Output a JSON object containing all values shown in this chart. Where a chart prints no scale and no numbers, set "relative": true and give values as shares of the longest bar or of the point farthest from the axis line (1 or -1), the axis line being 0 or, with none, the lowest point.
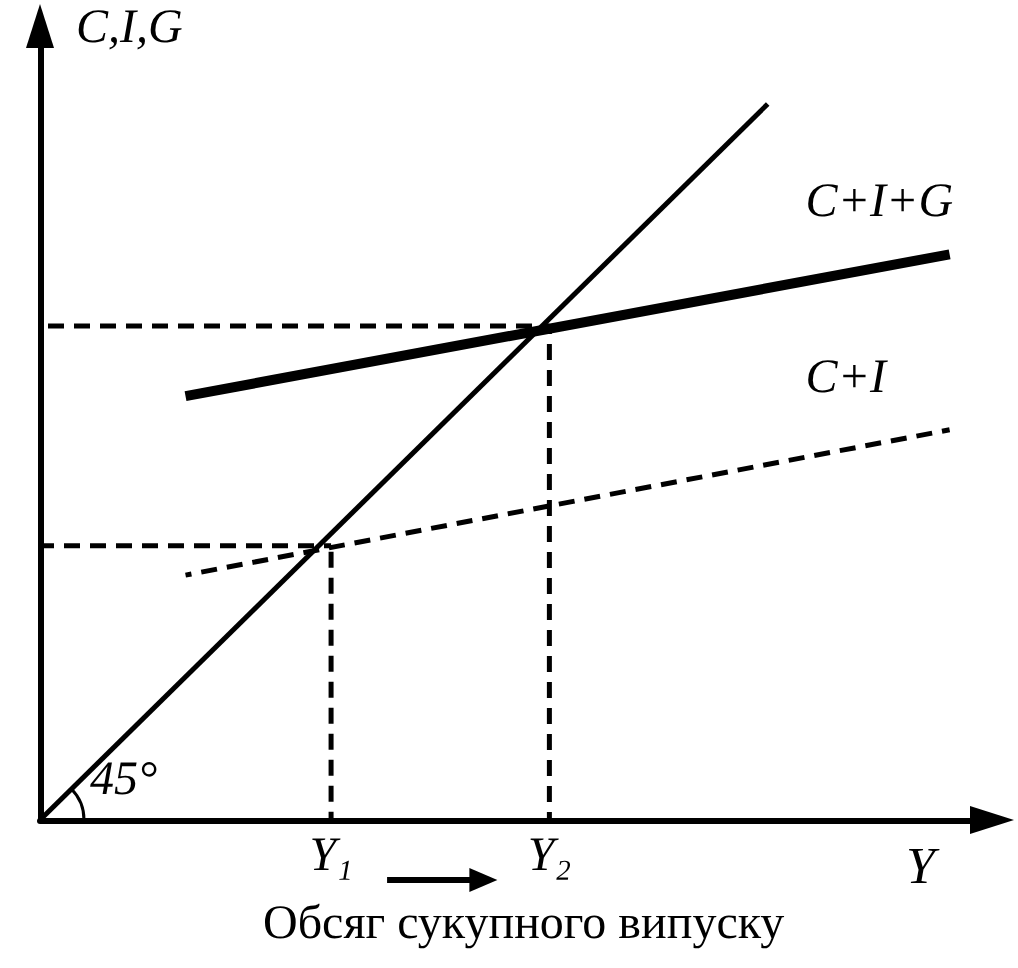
{
  "chart_data": {
    "type": "line",
    "relative": true,
    "xlabel": "Y",
    "ylabel": "C,I,G",
    "annotations": [
      "45°",
      "Обсяг сукупного випуску"
    ],
    "categories": [
      null,
      null,
      null,
      null,
      null,
      null,
      null,
      null,
      "Y₁",
      null,
      null,
      null,
      null,
      null,
      "Y₂",
      null,
      null,
      null,
      null,
      null,
      null,
      null,
      null,
      null,
      null,
      null,
      null
    ],
    "grid": false,
    "legend": false,
    "marker": "none",
    "series": [
      {
        "color": "#000000",
        "line_style": "solid",
        "values": [
          0,
          null,
          null,
          null,
          null,
          null,
          null,
          null,
          null,
          null,
          null,
          null,
          null,
          null,
          null,
          null,
          null,
          null,
          null,
          null,
          1,
          null,
          null,
          null,
          null,
          null,
          null
        ]
      },
      {
        "name": "C+I+G",
        "color": "#000000",
        "line_style": "solid",
        "values": [
          null,
          null,
          null,
          null,
          0.592,
          null,
          null,
          null,
          null,
          null,
          null,
          null,
          null,
          null,
          null,
          null,
          null,
          null,
          null,
          null,
          null,
          null,
          null,
          null,
          null,
          0.79,
          null
        ]
      },
      {
        "name": "C+I",
        "color": "#000000",
        "line_style": "dashed",
        "values": [
          null,
          null,
          null,
          null,
          0.342,
          null,
          null,
          null,
          null,
          null,
          null,
          null,
          null,
          null,
          null,
          null,
          null,
          null,
          null,
          null,
          null,
          null,
          null,
          null,
          null,
          0.545,
          null
        ]
      },
      {
        "color": "#000000",
        "line_style": "dashed",
        "values": [
          0.383,
          null,
          null,
          null,
          null,
          null,
          null,
          null,
          0.383,
          null,
          null,
          null,
          null,
          null,
          null,
          null,
          null,
          null,
          null,
          null,
          null,
          null,
          null,
          null,
          null,
          null,
          null
        ]
      },
      {
        "color": "#000000",
        "line_style": "dashed",
        "values": [
          0.69,
          null,
          null,
          null,
          null,
          null,
          null,
          null,
          null,
          null,
          null,
          null,
          null,
          null,
          0.69,
          null,
          null,
          null,
          null,
          null,
          null,
          null,
          null,
          null,
          null,
          null,
          null
        ]
      },
      {
        "color": "#000000",
        "line_style": "dashed",
        "x": [
          "Y₁",
          "Y₁"
        ],
        "values": [
          0.383,
          0
        ]
      },
      {
        "color": "#000000",
        "line_style": "dashed",
        "x": [
          "Y₂",
          "Y₂"
        ],
        "values": [
          0.69,
          0
        ]
      }
    ]
  }
}
